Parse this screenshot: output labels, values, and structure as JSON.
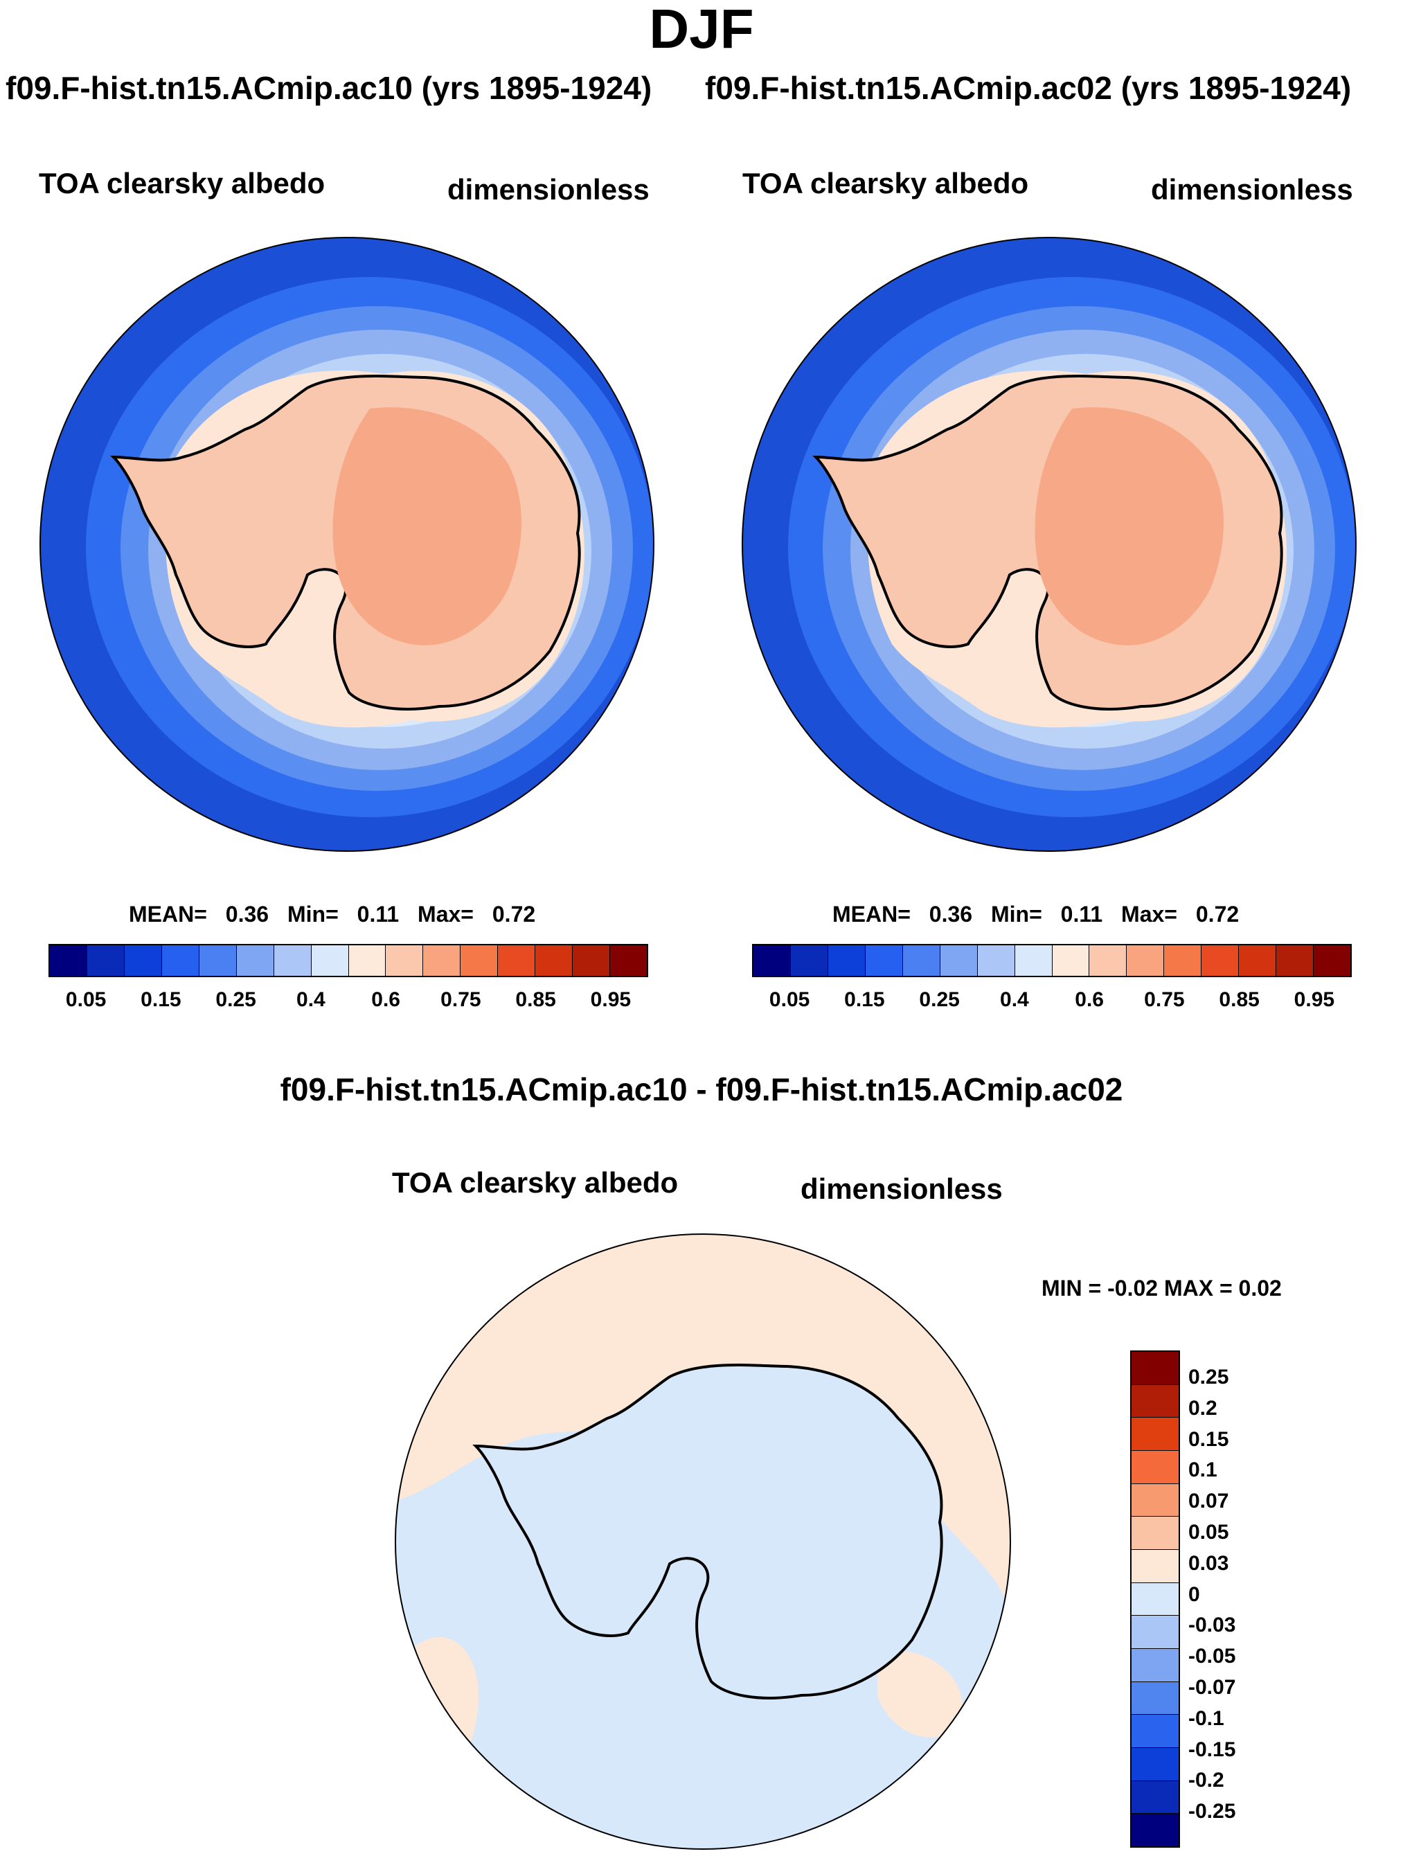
{
  "season": "DJF",
  "run_a": {
    "title": "f09.F-hist.tn15.ACmip.ac10 (yrs 1895-1924)"
  },
  "run_b": {
    "title": "f09.F-hist.tn15.ACmip.ac02 (yrs 1895-1924)"
  },
  "variable": "TOA clearsky albedo",
  "units": "dimensionless",
  "panels": [
    {
      "mean_label": "MEAN=",
      "mean": "0.36",
      "min_label": "Min=",
      "min": "0.11",
      "max_label": "Max=",
      "max": "0.72"
    },
    {
      "mean_label": "MEAN=",
      "mean": "0.36",
      "min_label": "Min=",
      "min": "0.11",
      "max_label": "Max=",
      "max": "0.72"
    }
  ],
  "diff": {
    "title": "f09.F-hist.tn15.ACmip.ac10 - f09.F-hist.tn15.ACmip.ac02",
    "minmax": "MIN =  -0.02 MAX =   0.02"
  },
  "colors": {
    "ocean": "#1a4fd6",
    "ring1": "#2e6cf0",
    "ring2": "#5a8ef0",
    "ring3": "#8fb1f2",
    "ring4": "#bcd3f8",
    "ring5": "#dce9fb",
    "coast_ice": "#fde6d6",
    "land": "#f9c7ae",
    "plateau": "#f6a887",
    "diff_neg": "#d8e8fb",
    "diff_pos": "#fde7d7"
  },
  "chart_data": [
    {
      "type": "map",
      "projection": "south-polar-stereographic",
      "title": "f09.F-hist.tn15.ACmip.ac10 (yrs 1895-1924)",
      "variable": "TOA clearsky albedo",
      "units": "dimensionless",
      "mean": 0.36,
      "min": 0.11,
      "max": 0.72,
      "colorbar": {
        "ticks": [
          "0.05",
          "0.15",
          "0.25",
          "0.4",
          "0.6",
          "0.75",
          "0.85",
          "0.95"
        ],
        "colors": [
          "#00007f",
          "#0a2bb8",
          "#0c40d8",
          "#2560f0",
          "#4b80f3",
          "#7fa6f3",
          "#acc7f7",
          "#d9e8fb",
          "#fdeadb",
          "#fbc8ad",
          "#f9a47e",
          "#f57849",
          "#e84b22",
          "#d4330f",
          "#b01e07",
          "#820000"
        ]
      }
    },
    {
      "type": "map",
      "projection": "south-polar-stereographic",
      "title": "f09.F-hist.tn15.ACmip.ac02 (yrs 1895-1924)",
      "variable": "TOA clearsky albedo",
      "units": "dimensionless",
      "mean": 0.36,
      "min": 0.11,
      "max": 0.72,
      "colorbar": {
        "ticks": [
          "0.05",
          "0.15",
          "0.25",
          "0.4",
          "0.6",
          "0.75",
          "0.85",
          "0.95"
        ],
        "colors": [
          "#00007f",
          "#0a2bb8",
          "#0c40d8",
          "#2560f0",
          "#4b80f3",
          "#7fa6f3",
          "#acc7f7",
          "#d9e8fb",
          "#fdeadb",
          "#fbc8ad",
          "#f9a47e",
          "#f57849",
          "#e84b22",
          "#d4330f",
          "#b01e07",
          "#820000"
        ]
      }
    },
    {
      "type": "map",
      "projection": "south-polar-stereographic",
      "title": "f09.F-hist.tn15.ACmip.ac10 - f09.F-hist.tn15.ACmip.ac02",
      "variable": "TOA clearsky albedo",
      "units": "dimensionless",
      "min": -0.02,
      "max": 0.02,
      "colorbar": {
        "ticks": [
          "0.25",
          "0.2",
          "0.15",
          "0.1",
          "0.07",
          "0.05",
          "0.03",
          "0",
          "-0.03",
          "-0.05",
          "-0.07",
          "-0.1",
          "-0.15",
          "-0.2",
          "-0.25"
        ],
        "colors": [
          "#820000",
          "#b01e07",
          "#e0400f",
          "#f56a3a",
          "#f89a70",
          "#fbc3a6",
          "#fde7d7",
          "#d8e8fb",
          "#a9c6f6",
          "#7ea5f2",
          "#5085f0",
          "#2a63ee",
          "#0c40d8",
          "#0a2bb8",
          "#00007f"
        ]
      }
    }
  ]
}
